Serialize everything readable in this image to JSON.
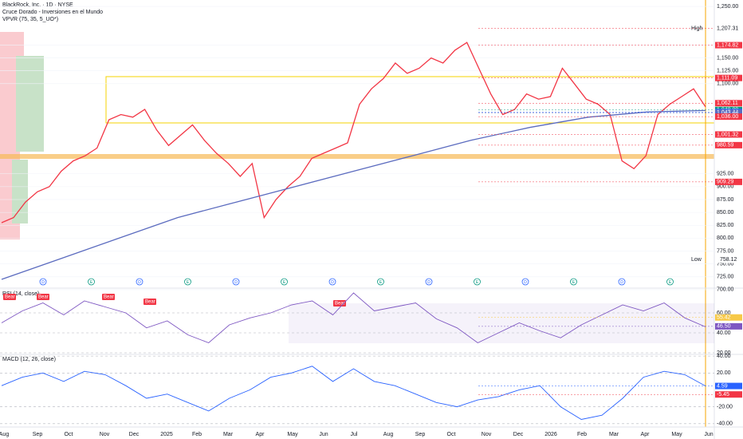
{
  "header": {
    "symbol": "BlackRock, Inc. · 1D · NYSE",
    "indicator_1": "Cruce Dorado - Inversiones en el Mundo",
    "indicator_2": "VPVR (75, 35, 5_UO*)"
  },
  "chart_data": [
    {
      "type": "line",
      "name": "price",
      "ylim": [
        700,
        1262.5
      ],
      "yticks": [
        {
          "value": 1250,
          "label": "1,250.00"
        },
        {
          "value": 1175,
          "label": "1,175.00"
        },
        {
          "value": 1150,
          "label": "1,150.00"
        },
        {
          "value": 1125,
          "label": "1,125.00"
        },
        {
          "value": 1100,
          "label": "1,100.00"
        },
        {
          "value": 925,
          "label": "925.00"
        },
        {
          "value": 900,
          "label": "900.00"
        },
        {
          "value": 875,
          "label": "875.00"
        },
        {
          "value": 850,
          "label": "850.00"
        },
        {
          "value": 825,
          "label": "825.00"
        },
        {
          "value": 800,
          "label": "800.00"
        },
        {
          "value": 775,
          "label": "775.00"
        },
        {
          "value": 750,
          "label": "750.00"
        },
        {
          "value": 725,
          "label": "725.00"
        },
        {
          "value": 700,
          "label": "700.00"
        }
      ],
      "price_tags": [
        {
          "value": 1207.31,
          "label": "1,207.31",
          "color": "#ffffff",
          "text_color": "#131722"
        },
        {
          "value": 1174.82,
          "label": "1,174.82",
          "color": "#f23645",
          "text_color": "#ffffff"
        },
        {
          "value": 1111.09,
          "label": "1,111.09",
          "color": "#f23645",
          "text_color": "#ffffff"
        },
        {
          "value": 1062.11,
          "label": "1,062.11",
          "color": "#f23645",
          "text_color": "#ffffff"
        },
        {
          "value": 1048.89,
          "label": "1,048.89",
          "color": "#089981",
          "text_color": "#ffffff"
        },
        {
          "value": 1045.09,
          "label": "1,045.09",
          "color": "#2962ff",
          "text_color": "#ffffff"
        },
        {
          "value": 1043.44,
          "label": "1,043.44",
          "color": "#5b6bbf",
          "text_color": "#ffffff"
        },
        {
          "value": 1036.0,
          "label": "1,036.00",
          "color": "#f23645",
          "text_color": "#ffffff"
        },
        {
          "value": 1001.32,
          "label": "1,001.32",
          "color": "#f23645",
          "text_color": "#ffffff"
        },
        {
          "value": 980.59,
          "label": "980.59",
          "color": "#f23645",
          "text_color": "#ffffff"
        },
        {
          "value": 909.29,
          "label": "909.29",
          "color": "#f23645",
          "text_color": "#ffffff"
        }
      ],
      "high": {
        "label": "High",
        "value": 1207.31,
        "value_label": "1,207.31"
      },
      "low": {
        "label": "Low",
        "value": 758.12,
        "value_label": "758.12"
      },
      "series": [
        {
          "name": "Close",
          "color": "#f23645",
          "values": [
            830,
            840,
            870,
            890,
            900,
            930,
            950,
            960,
            975,
            1030,
            1040,
            1035,
            1050,
            1010,
            980,
            1000,
            1020,
            990,
            965,
            945,
            920,
            945,
            840,
            875,
            900,
            920,
            955,
            965,
            975,
            985,
            1060,
            1090,
            1110,
            1140,
            1120,
            1130,
            1150,
            1140,
            1165,
            1180,
            1130,
            1080,
            1040,
            1050,
            1080,
            1070,
            1075,
            1130,
            1100,
            1070,
            1060,
            1040,
            950,
            935,
            960,
            1040,
            1060,
            1075,
            1090,
            1055
          ]
        },
        {
          "name": "MA 200",
          "color": "#5b6bbf",
          "values": [
            720,
            760,
            800,
            840,
            870,
            900,
            930,
            960,
            990,
            1015,
            1035,
            1045,
            1048
          ]
        }
      ],
      "bear_labels": [
        "Bear",
        "Bear",
        "Bear",
        "Bear",
        "Bear"
      ],
      "events": [
        "D",
        "E",
        "D",
        "E",
        "D",
        "E",
        "D",
        "E",
        "D",
        "E",
        "D",
        "E",
        "D",
        "E"
      ]
    },
    {
      "type": "line",
      "name": "rsi",
      "title": "RSI (14, close)",
      "ylim": [
        18,
        84
      ],
      "yticks": [
        {
          "value": 60,
          "label": "60.00"
        },
        {
          "value": 40,
          "label": "40.00"
        },
        {
          "value": 20,
          "label": "20.00"
        }
      ],
      "tags": [
        {
          "value": 55.42,
          "label": "55.42",
          "color": "#f7c948"
        },
        {
          "value": 46.5,
          "label": "46.50",
          "color": "#7e57c2"
        }
      ],
      "series": [
        {
          "name": "RSI",
          "color": "#7e57c2",
          "values": [
            50,
            62,
            70,
            58,
            72,
            66,
            60,
            45,
            52,
            38,
            30,
            48,
            55,
            60,
            68,
            72,
            58,
            80,
            62,
            66,
            70,
            54,
            45,
            30,
            40,
            50,
            42,
            35,
            48,
            58,
            68,
            62,
            70,
            55,
            46
          ]
        }
      ]
    },
    {
      "type": "line",
      "name": "macd",
      "title": "MACD (12, 26, close)",
      "ylim": [
        -44,
        42
      ],
      "yticks": [
        {
          "value": 40,
          "label": "40.00"
        },
        {
          "value": 20,
          "label": "20.00"
        },
        {
          "value": -20,
          "label": "-20.00"
        },
        {
          "value": -40,
          "label": "-40.00"
        }
      ],
      "tags": [
        {
          "value": 4.59,
          "label": "4.59",
          "color": "#2962ff"
        },
        {
          "value": -5.45,
          "label": "-5.45",
          "color": "#f23645"
        }
      ],
      "series": [
        {
          "name": "MACD",
          "color": "#2962ff",
          "values": [
            5,
            15,
            20,
            10,
            22,
            18,
            5,
            -10,
            -5,
            -15,
            -25,
            -10,
            0,
            15,
            20,
            28,
            10,
            25,
            10,
            5,
            -5,
            -15,
            -20,
            -12,
            -8,
            0,
            5,
            -20,
            -35,
            -30,
            -10,
            15,
            22,
            18,
            4.59
          ]
        }
      ]
    }
  ],
  "time_axis": [
    "Aug",
    "Sep",
    "Oct",
    "Nov",
    "Dec",
    "2025",
    "Feb",
    "Mar",
    "Apr",
    "May",
    "Jun",
    "Jul",
    "Aug",
    "Sep",
    "Oct",
    "Nov",
    "Dec",
    "2026",
    "Feb",
    "Mar",
    "Apr",
    "May",
    "Jun"
  ]
}
